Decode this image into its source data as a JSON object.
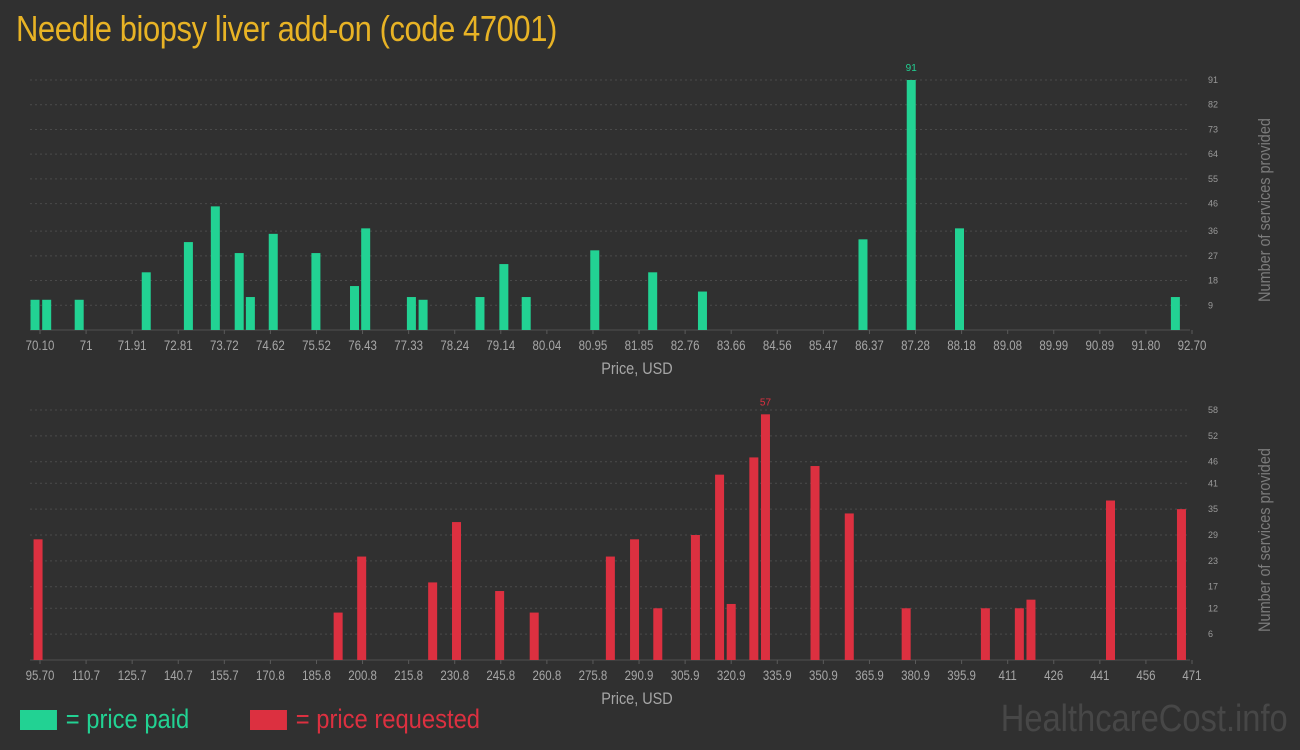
{
  "title": "Needle biopsy liver add-on (code 47001)",
  "colors": {
    "paid": "#22d293",
    "requested": "#dc3040",
    "title": "#e8b325",
    "background": "#303030"
  },
  "legend": {
    "paid": "= price paid",
    "requested": "= price requested"
  },
  "watermark": "HealthcareCost.info",
  "chart_data": [
    {
      "type": "bar",
      "series": "paid",
      "xlabel": "Price, USD",
      "ylabel": "Number of services provided",
      "xlim": [
        70.1,
        92.7
      ],
      "ylim": [
        0,
        91
      ],
      "x_ticks": [
        "70.10",
        "71",
        "71.91",
        "72.81",
        "73.72",
        "74.62",
        "75.52",
        "76.43",
        "77.33",
        "78.24",
        "79.14",
        "80.04",
        "80.95",
        "81.85",
        "82.76",
        "83.66",
        "84.56",
        "85.47",
        "86.37",
        "87.28",
        "88.18",
        "89.08",
        "89.99",
        "90.89",
        "91.80",
        "92.70"
      ],
      "y_ticks": [
        9,
        18,
        27,
        36,
        46,
        55,
        64,
        73,
        82,
        91
      ],
      "peak_label": "91",
      "bars": [
        {
          "x": 70.1,
          "y": 11
        },
        {
          "x": 70.33,
          "y": 11
        },
        {
          "x": 70.97,
          "y": 11
        },
        {
          "x": 72.29,
          "y": 21
        },
        {
          "x": 73.12,
          "y": 32
        },
        {
          "x": 73.65,
          "y": 45
        },
        {
          "x": 74.12,
          "y": 28
        },
        {
          "x": 74.34,
          "y": 12
        },
        {
          "x": 74.79,
          "y": 35
        },
        {
          "x": 75.63,
          "y": 28
        },
        {
          "x": 76.39,
          "y": 16
        },
        {
          "x": 76.61,
          "y": 37
        },
        {
          "x": 77.51,
          "y": 12
        },
        {
          "x": 77.74,
          "y": 11
        },
        {
          "x": 78.86,
          "y": 12
        },
        {
          "x": 79.33,
          "y": 24
        },
        {
          "x": 79.77,
          "y": 12
        },
        {
          "x": 81.12,
          "y": 29
        },
        {
          "x": 82.26,
          "y": 21
        },
        {
          "x": 83.24,
          "y": 14
        },
        {
          "x": 86.4,
          "y": 33
        },
        {
          "x": 87.35,
          "y": 91
        },
        {
          "x": 88.3,
          "y": 37
        },
        {
          "x": 92.55,
          "y": 12
        }
      ]
    },
    {
      "type": "bar",
      "series": "requested",
      "xlabel": "Price, USD",
      "ylabel": "Number of services provided",
      "xlim": [
        95.7,
        471
      ],
      "ylim": [
        0,
        58
      ],
      "x_ticks": [
        "95.70",
        "110.7",
        "125.7",
        "140.7",
        "155.7",
        "170.8",
        "185.8",
        "200.8",
        "215.8",
        "230.8",
        "245.8",
        "260.8",
        "275.8",
        "290.9",
        "305.9",
        "320.9",
        "335.9",
        "350.9",
        "365.9",
        "380.9",
        "395.9",
        "411",
        "426",
        "441",
        "456",
        "471"
      ],
      "y_ticks": [
        6,
        12,
        17,
        23,
        29,
        35,
        41,
        46,
        52,
        58
      ],
      "peak_label": "57",
      "bars": [
        {
          "x": 96.7,
          "y": 28
        },
        {
          "x": 194.8,
          "y": 11
        },
        {
          "x": 202.5,
          "y": 24
        },
        {
          "x": 225.7,
          "y": 18
        },
        {
          "x": 233.5,
          "y": 32
        },
        {
          "x": 247.6,
          "y": 16
        },
        {
          "x": 258.9,
          "y": 11
        },
        {
          "x": 283.8,
          "y": 24
        },
        {
          "x": 291.7,
          "y": 28
        },
        {
          "x": 299.3,
          "y": 12
        },
        {
          "x": 311.6,
          "y": 29
        },
        {
          "x": 319.5,
          "y": 43
        },
        {
          "x": 323.3,
          "y": 13
        },
        {
          "x": 330.7,
          "y": 47
        },
        {
          "x": 334.5,
          "y": 57
        },
        {
          "x": 350.7,
          "y": 45
        },
        {
          "x": 361.9,
          "y": 34
        },
        {
          "x": 380.5,
          "y": 12
        },
        {
          "x": 406.4,
          "y": 12
        },
        {
          "x": 417.5,
          "y": 12
        },
        {
          "x": 421.3,
          "y": 14
        },
        {
          "x": 447.3,
          "y": 37
        },
        {
          "x": 470.5,
          "y": 35
        }
      ]
    }
  ]
}
